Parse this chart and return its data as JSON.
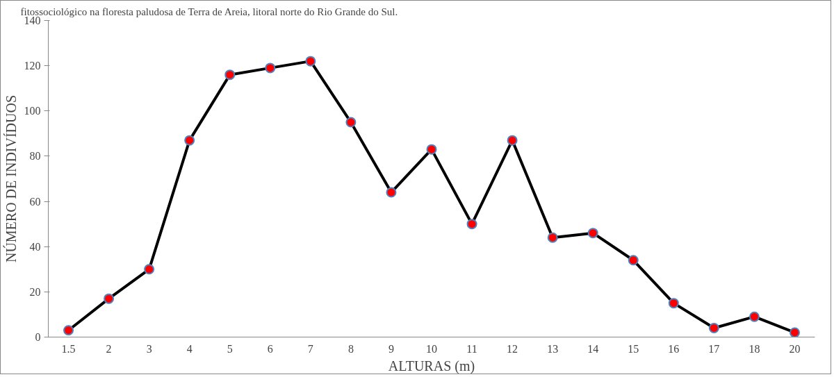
{
  "chart_data": {
    "type": "line",
    "title": "fitossociológico na floresta paludosa de Terra de Areia, litoral norte do Rio Grande do Sul.",
    "xlabel": "ALTURAS (m)",
    "ylabel": "NÚMERO DE INDIVÍDUOS",
    "categories": [
      "1.5",
      "2",
      "3",
      "4",
      "5",
      "6",
      "7",
      "8",
      "9",
      "10",
      "11",
      "12",
      "13",
      "14",
      "15",
      "16",
      "17",
      "18",
      "20"
    ],
    "series": [
      {
        "color": "#ff0000",
        "values": [
          3,
          17,
          30,
          87,
          116,
          119,
          122,
          95,
          64,
          83,
          50,
          87,
          44,
          46,
          34,
          15,
          4,
          9,
          2
        ]
      }
    ],
    "ylim": [
      0,
      140
    ],
    "yticks": [
      0,
      20,
      40,
      60,
      80,
      100,
      120,
      140
    ],
    "grid": false,
    "marker": "circle",
    "line_style": "solid"
  }
}
